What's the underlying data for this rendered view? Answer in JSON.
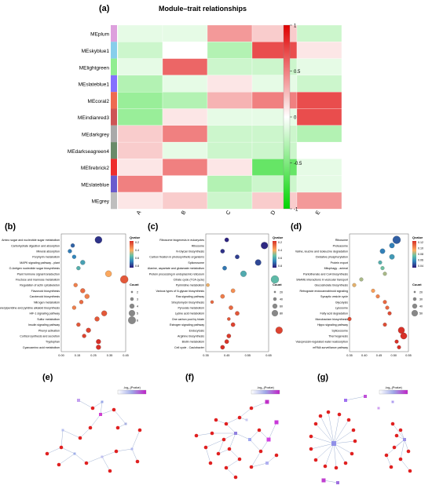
{
  "figure": {
    "panel_labels": [
      "(a)",
      "(b)",
      "(c)",
      "(d)",
      "(e)",
      "(f)",
      "(g)"
    ]
  },
  "heatmap": {
    "title": "Module–trait relationships",
    "modules": [
      "MEplum",
      "MEskyblue1",
      "MElightgreen",
      "MEslateblue1",
      "MEcoral2",
      "MEindianred3",
      "MEdarkgrey",
      "MEdarkseagreen4",
      "MEfirebrick2",
      "MEslateblue",
      "MEgrey"
    ],
    "module_colors": [
      "#dda0dd",
      "#87ceeb",
      "#90ee90",
      "#8470ff",
      "#ee6a50",
      "#cd5555",
      "#a9a9a9",
      "#698b69",
      "#ee2c2c",
      "#6a5acd",
      "#bebebe"
    ],
    "traits": [
      "A",
      "B",
      "C",
      "D",
      "E"
    ],
    "colorbar_ticks": [
      "1",
      "0.5",
      "0",
      "-0.5",
      "-1"
    ],
    "scale_colors": {
      "neg": "#00d400",
      "mid": "#ffffff",
      "pos": "#e00000"
    }
  },
  "chart_data": [
    {
      "type": "heatmap",
      "title": "Module–trait relationships",
      "rows": [
        "MEplum",
        "MEskyblue1",
        "MElightgreen",
        "MEslateblue1",
        "MEcoral2",
        "MEindianred3",
        "MEdarkgrey",
        "MEdarkseagreen4",
        "MEfirebrick2",
        "MEslateblue",
        "MEgrey"
      ],
      "columns": [
        "A",
        "B",
        "C",
        "D",
        "E"
      ],
      "values": [
        [
          -0.1,
          -0.1,
          0.4,
          0.2,
          -0.2
        ],
        [
          -0.2,
          0.0,
          -0.3,
          0.7,
          0.1
        ],
        [
          -0.1,
          0.6,
          -0.2,
          -0.2,
          -0.1
        ],
        [
          -0.3,
          -0.1,
          0.1,
          -0.1,
          -0.2
        ],
        [
          -0.4,
          -0.3,
          0.3,
          0.5,
          0.7
        ],
        [
          -0.4,
          0.1,
          -0.1,
          -0.1,
          0.7
        ],
        [
          0.2,
          0.5,
          -0.2,
          -0.2,
          -0.3
        ],
        [
          0.2,
          -0.1,
          -0.2,
          -0.2,
          0.0
        ],
        [
          0.1,
          0.5,
          0.1,
          -0.6,
          -0.1
        ],
        [
          0.5,
          0.0,
          -0.3,
          -0.2,
          -0.1
        ],
        [
          0.1,
          0.2,
          -0.2,
          0.2,
          0.4
        ]
      ],
      "colorbar_range": [
        -1,
        1
      ]
    },
    {
      "type": "scatter",
      "panel": "b",
      "categories": [
        "Amino sugar and nucleotide sugar metabolism",
        "Carbohydrate digestion and absorption",
        "Mineral absorption",
        "Porphyrin metabolism",
        "MAPK signaling pathway - plant",
        "O-Antigen nucleotide sugar biosynthesis",
        "Plant hormone signal transduction",
        "Fructose and mannose metabolism",
        "Regulation of actin cytoskeleton",
        "Flavonoid biosynthesis",
        "Carotenoid biosynthesis",
        "Nitrogen metabolism",
        "Tropane/piperidine and pyridine alkaloid biosynthesis",
        "HIF-1 signaling pathway",
        "Sulfur metabolism",
        "Insulin signaling pathway",
        "Phenyl activation",
        "Cortisol synthesis and secretion",
        "Tryptophan",
        "Cyanoamino acid metabolism"
      ],
      "x": [
        0.26,
        0.08,
        0.06,
        0.09,
        0.15,
        0.12,
        0.33,
        0.44,
        0.1,
        0.15,
        0.18,
        0.14,
        0.09,
        0.3,
        0.25,
        0.12,
        0.19,
        0.16,
        0.26,
        0.26
      ],
      "counts": [
        6,
        2,
        2,
        2,
        3,
        2,
        5,
        7,
        2,
        3,
        3,
        2,
        2,
        4,
        3,
        2,
        3,
        2,
        3,
        3
      ],
      "qvalue": [
        0.05,
        0.15,
        0.2,
        0.22,
        0.3,
        0.35,
        0.6,
        0.8,
        0.7,
        0.75,
        0.7,
        0.75,
        0.7,
        0.8,
        0.8,
        0.8,
        0.85,
        0.85,
        0.9,
        0.9
      ],
      "xticks": [
        "0.00",
        "0.15",
        "0.25",
        "0.35",
        "0.45"
      ],
      "legend_title": "Qvalue",
      "legend_ticks": [
        "0.2",
        "0.4",
        "0.6",
        "0.8"
      ],
      "size_title": "Count",
      "size_ticks": [
        "2",
        "3",
        "4",
        "5",
        "6"
      ]
    },
    {
      "type": "scatter",
      "panel": "c",
      "categories": [
        "Ribosome biogenesis in eukaryotes",
        "Ribosome",
        "N-Glycan biosynthesis",
        "Carbon fixation in photosynthetic organisms",
        "Spliceosome",
        "Alanine, aspartate and glutamate metabolism",
        "Protein processing in endoplasmic reticulum",
        "Citrate cycle (TCA cycle)",
        "Pyrimidine metabolism",
        "Various types of N-glycan biosynthesis",
        "Ras signaling pathway",
        "Streptomycin biosynthesis",
        "Pyruvate metabolism",
        "Lysine acid metabolism",
        "One carbon pool by folate",
        "Estrogen signaling pathway",
        "Endocytosis",
        "Arginine biosynthesis",
        "Biotin metabolism",
        "Cell cycle - Caulobacter"
      ],
      "x": [
        0.45,
        0.63,
        0.43,
        0.5,
        0.6,
        0.44,
        0.53,
        0.68,
        0.36,
        0.48,
        0.43,
        0.38,
        0.47,
        0.5,
        0.46,
        0.48,
        0.7,
        0.46,
        0.45,
        0.43
      ],
      "counts": [
        20,
        50,
        20,
        20,
        40,
        20,
        40,
        60,
        10,
        20,
        20,
        10,
        20,
        20,
        10,
        20,
        50,
        20,
        20,
        20
      ],
      "qvalue": [
        0.02,
        0.03,
        0.05,
        0.08,
        0.1,
        0.2,
        0.35,
        0.4,
        0.6,
        0.7,
        0.75,
        0.8,
        0.8,
        0.85,
        0.85,
        0.9,
        0.9,
        0.92,
        0.94,
        0.95
      ],
      "xticks": [
        "0.35",
        "0.45",
        "0.55",
        "0.65"
      ],
      "legend_title": "Qvalue",
      "legend_ticks": [
        "0.2",
        "0.4",
        "0.6",
        "0.8"
      ],
      "size_title": "Count",
      "size_ticks": [
        "20",
        "40",
        "60",
        "80"
      ]
    },
    {
      "type": "scatter",
      "panel": "d",
      "categories": [
        "Ribosome",
        "Proteasome",
        "Valine, leucine and isoleucine degradation",
        "Oxidative phosphorylation",
        "Protein export",
        "Mitophagy - animal",
        "Pantothenate and CoA biosynthesis",
        "SNARE interactions in vesicular transport",
        "Glucosinolate biosynthesis",
        "Retrograde endocannabinoid signaling",
        "Synaptic vesicle cycle",
        "Glycolysis",
        "Lysosome",
        "Fatty acid degradation",
        "Monobactam biosynthesis",
        "Hippo signaling pathway",
        "Spliceosome",
        "Thermogenesis",
        "Vasopressin-regulated water reabsorption",
        "mRNA surveillance pathway"
      ],
      "x": [
        0.5,
        0.48,
        0.44,
        0.48,
        0.43,
        0.44,
        0.45,
        0.35,
        0.32,
        0.4,
        0.42,
        0.45,
        0.46,
        0.47,
        0.3,
        0.45,
        0.52,
        0.53,
        0.5,
        0.51
      ],
      "counts": [
        40,
        20,
        20,
        20,
        10,
        10,
        10,
        10,
        10,
        10,
        10,
        10,
        10,
        10,
        10,
        10,
        30,
        30,
        10,
        10
      ],
      "qvalue": [
        0.02,
        0.03,
        0.03,
        0.04,
        0.05,
        0.06,
        0.07,
        0.07,
        0.08,
        0.09,
        0.1,
        0.11,
        0.11,
        0.12,
        0.12,
        0.12,
        0.13,
        0.13,
        0.13,
        0.13
      ],
      "xticks": [
        "0.35",
        "0.40",
        "0.45",
        "0.50",
        "0.55"
      ],
      "legend_title": "Qvalue",
      "legend_ticks": [
        "0.12",
        "0.10",
        "0.08",
        "0.06",
        "0.04"
      ],
      "size_title": "Count",
      "size_ticks": [
        "20",
        "30",
        "40",
        "50"
      ]
    }
  ],
  "networks": {
    "legend_title": "-log₁₀(Pvalue)",
    "e_legend_title": "-log₁₀(Pvalue)",
    "f_legend_title": "-log₁₀(Pvalue)",
    "g_legend_title": "-log₁₀(Pvalue)"
  }
}
